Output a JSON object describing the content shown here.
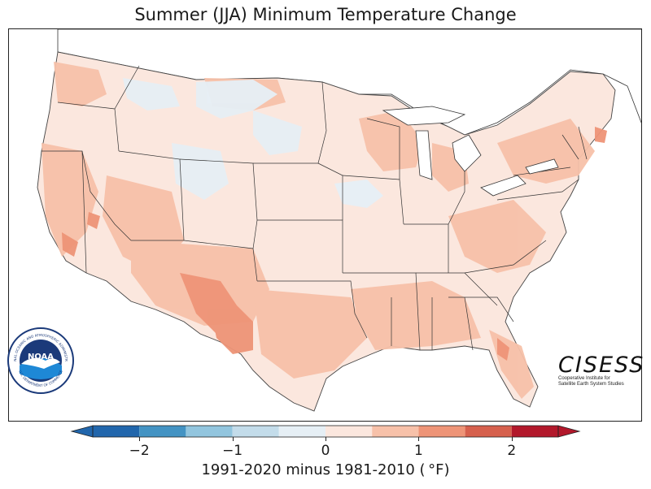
{
  "title": "Summer (JJA) Minimum Temperature Change",
  "legend": {
    "label": "1991-2020 minus 1981-2010 ( °F)",
    "ticks": [
      "−2",
      "−1",
      "0",
      "1",
      "2"
    ],
    "tick_values": [
      -2,
      -1,
      0,
      1,
      2
    ],
    "bins": [
      {
        "min": -2.5,
        "max": -2.0,
        "color": "#2166ac"
      },
      {
        "min": -2.0,
        "max": -1.5,
        "color": "#4393c3"
      },
      {
        "min": -1.5,
        "max": -1.0,
        "color": "#92c5de"
      },
      {
        "min": -1.0,
        "max": -0.5,
        "color": "#c3dcea"
      },
      {
        "min": -0.5,
        "max": 0.0,
        "color": "#e6eff5"
      },
      {
        "min": 0.0,
        "max": 0.5,
        "color": "#fbe7de"
      },
      {
        "min": 0.5,
        "max": 1.0,
        "color": "#f7c1a9"
      },
      {
        "min": 1.0,
        "max": 1.5,
        "color": "#ee9477"
      },
      {
        "min": 1.5,
        "max": 2.0,
        "color": "#d6604d"
      },
      {
        "min": 2.0,
        "max": 2.5,
        "color": "#b2182b"
      }
    ]
  },
  "logos": {
    "noaa": {
      "center_text": "NOAA",
      "ring_top": "NATIONAL OCEANIC AND ATMOSPHERIC ADMINISTRATION",
      "ring_bottom": "U.S. DEPARTMENT OF COMMERCE"
    },
    "cisess": {
      "wordmark": "CISESS",
      "line1": "Cooperative Institute for",
      "line2": "Satellite Earth System Studies"
    }
  },
  "colors": {
    "land_dominant": "#fbe7de",
    "warming_light": "#f7c1a9",
    "warming_strong": "#ee9477",
    "cooling_light": "#e6eff5",
    "border": "#222222"
  }
}
